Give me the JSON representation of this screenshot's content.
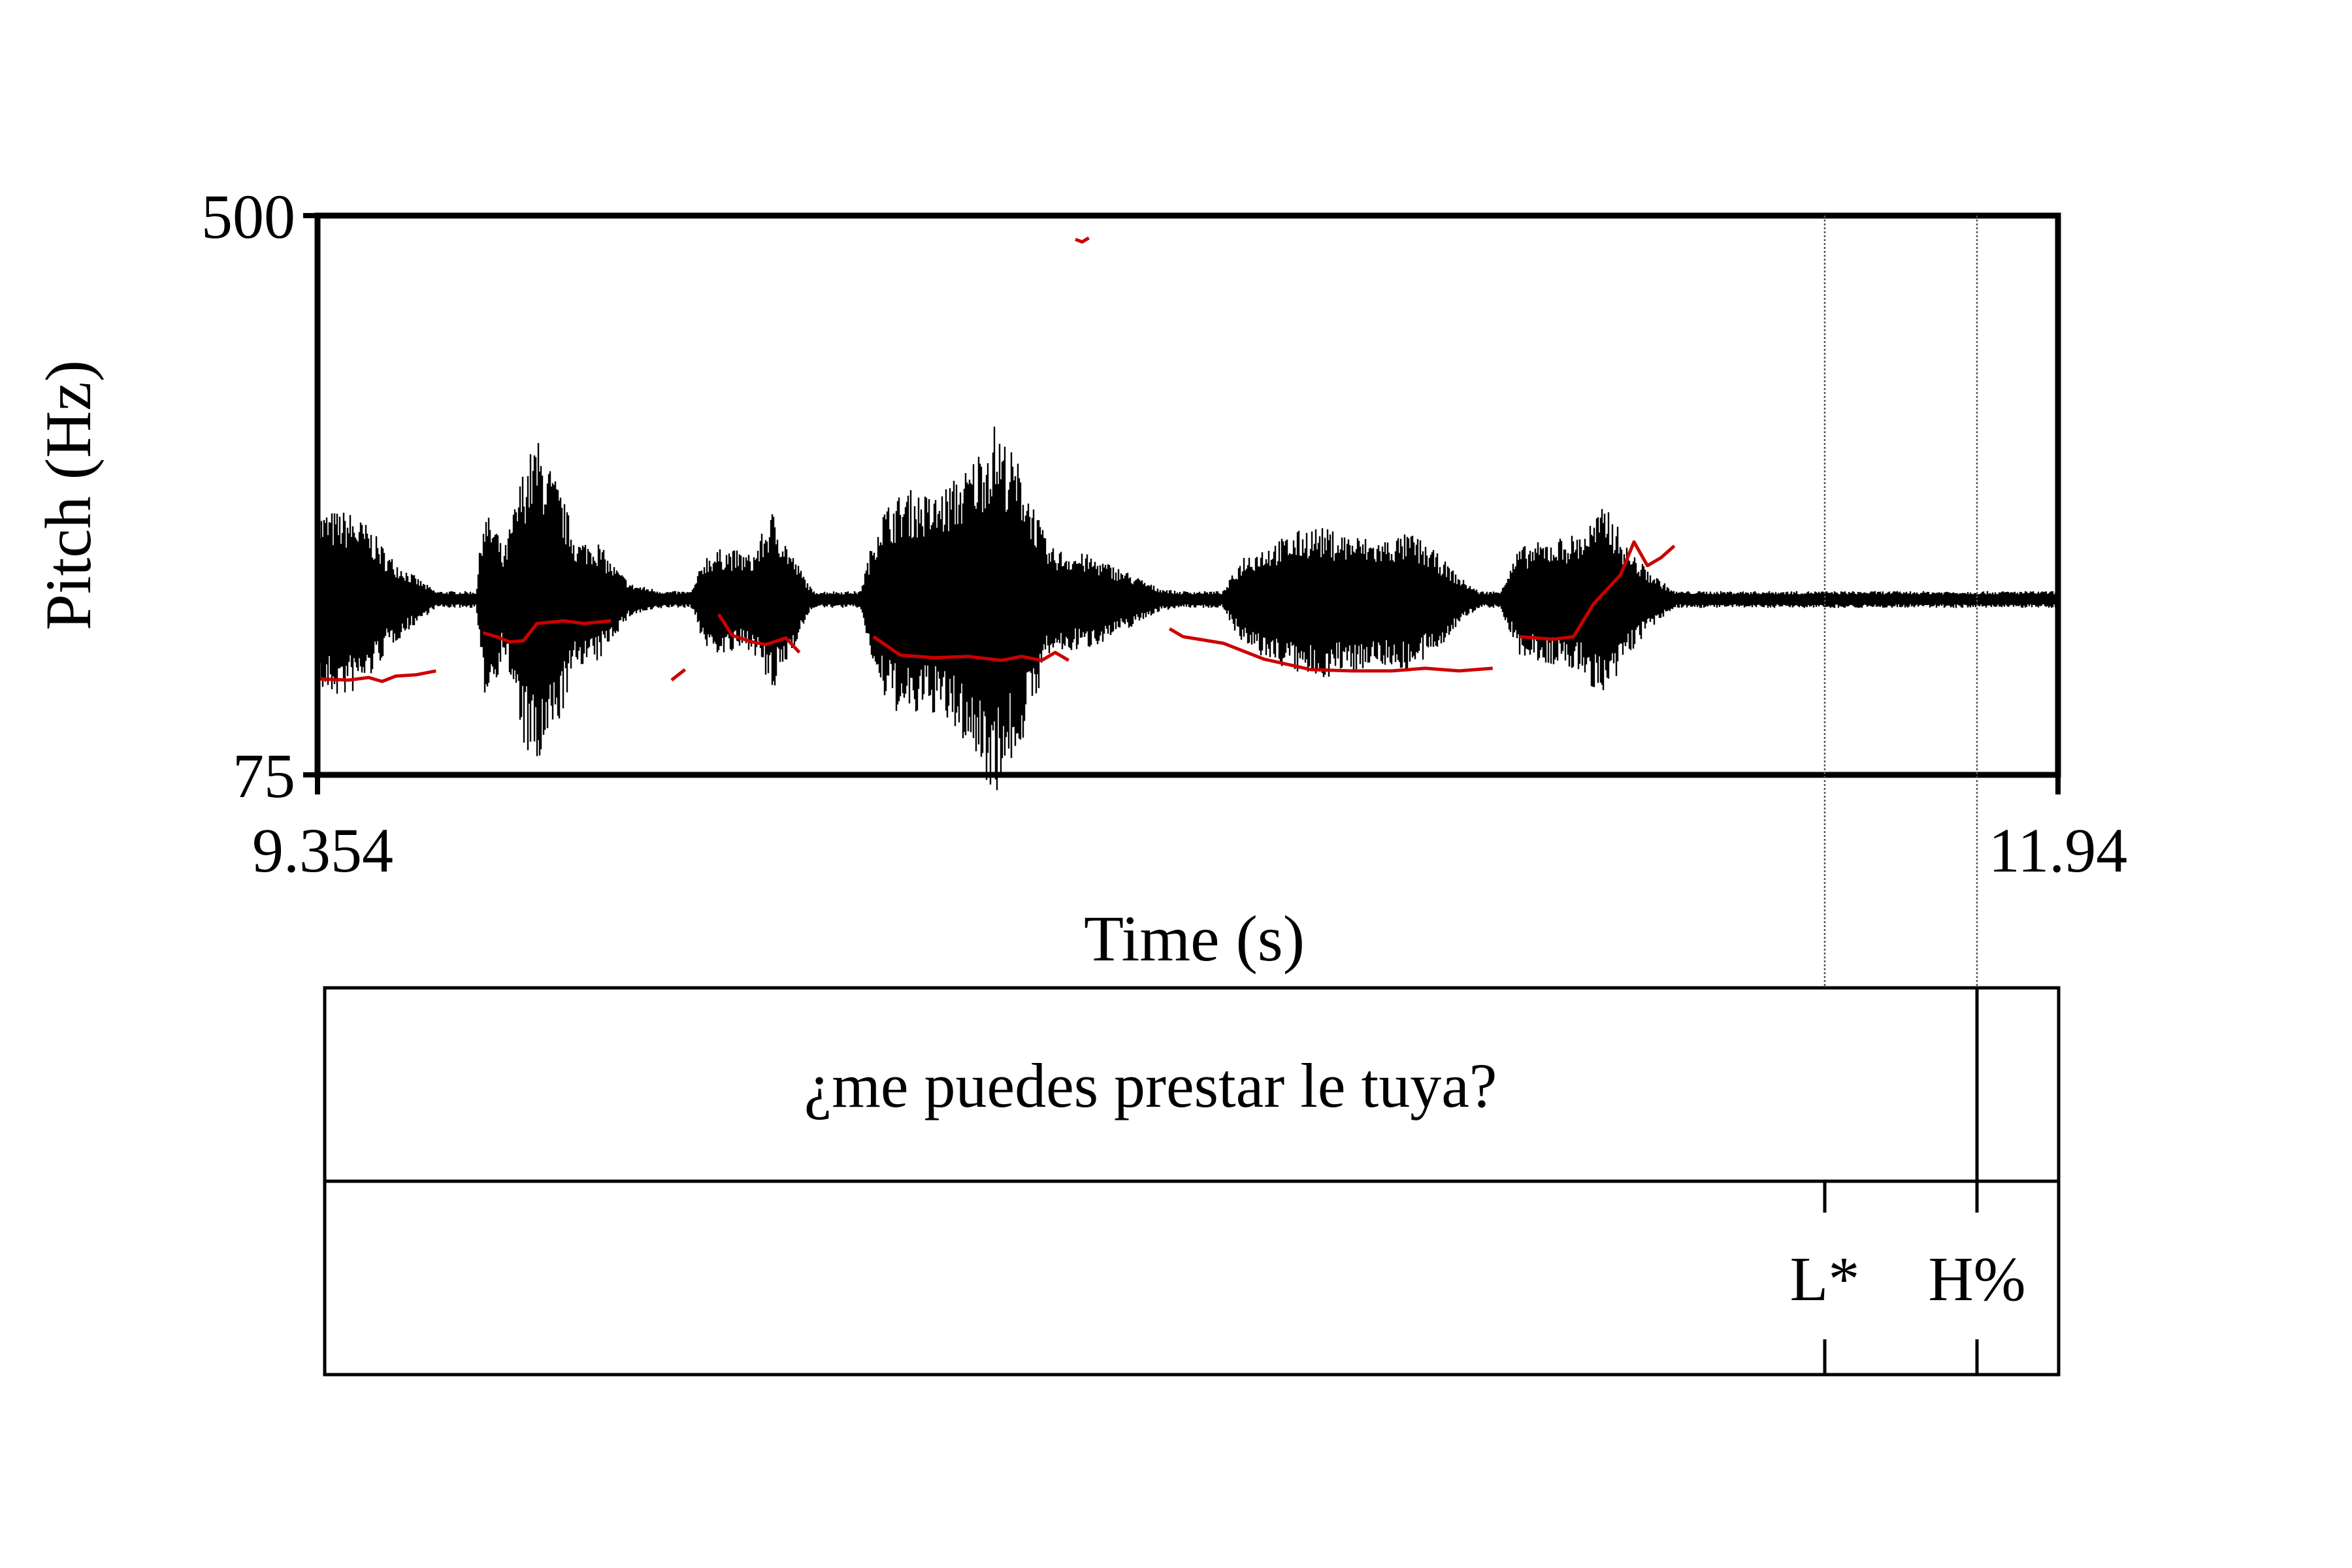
{
  "chart_data": {
    "type": "line",
    "ylabel": "Pitch (Hz)",
    "xlabel": "Time (s)",
    "yticks": [
      "75",
      "500"
    ],
    "xticks": [
      "9.354",
      "11.94"
    ],
    "xlim": [
      9.354,
      11.94
    ],
    "ylim": [
      75,
      500
    ],
    "y_scale": "linear",
    "grid": false,
    "colors": {
      "pitch": "#cc0000",
      "waveform": "#000000"
    },
    "waveform_envelope": [
      [
        9.354,
        0.06
      ],
      [
        9.4,
        0.06
      ],
      [
        9.43,
        0.05
      ],
      [
        9.46,
        0.03
      ],
      [
        9.5,
        0.015
      ],
      [
        9.53,
        0.005
      ],
      [
        9.59,
        0.005
      ],
      [
        9.6,
        0.06
      ],
      [
        9.62,
        0.05
      ],
      [
        9.63,
        0.03
      ],
      [
        9.66,
        0.09
      ],
      [
        9.68,
        0.11
      ],
      [
        9.71,
        0.08
      ],
      [
        9.74,
        0.04
      ],
      [
        9.77,
        0.04
      ],
      [
        9.79,
        0.025
      ],
      [
        9.82,
        0.01
      ],
      [
        9.87,
        0.005
      ],
      [
        9.89,
        0.005
      ],
      [
        9.91,
        0.005
      ],
      [
        9.93,
        0.03
      ],
      [
        9.96,
        0.035
      ],
      [
        10.0,
        0.03
      ],
      [
        10.03,
        0.06
      ],
      [
        10.06,
        0.03
      ],
      [
        10.09,
        0.005
      ],
      [
        10.16,
        0.005
      ],
      [
        10.19,
        0.06
      ],
      [
        10.23,
        0.075
      ],
      [
        10.27,
        0.07
      ],
      [
        10.32,
        0.09
      ],
      [
        10.36,
        0.12
      ],
      [
        10.4,
        0.09
      ],
      [
        10.44,
        0.035
      ],
      [
        10.5,
        0.03
      ],
      [
        10.55,
        0.02
      ],
      [
        10.6,
        0.008
      ],
      [
        10.63,
        0.005
      ],
      [
        10.7,
        0.005
      ],
      [
        10.73,
        0.03
      ],
      [
        10.78,
        0.04
      ],
      [
        10.83,
        0.05
      ],
      [
        10.88,
        0.045
      ],
      [
        10.93,
        0.04
      ],
      [
        10.98,
        0.045
      ],
      [
        11.02,
        0.03
      ],
      [
        11.05,
        0.015
      ],
      [
        11.08,
        0.005
      ],
      [
        11.11,
        0.005
      ],
      [
        11.14,
        0.035
      ],
      [
        11.18,
        0.04
      ],
      [
        11.23,
        0.045
      ],
      [
        11.27,
        0.065
      ],
      [
        11.3,
        0.035
      ],
      [
        11.33,
        0.02
      ],
      [
        11.37,
        0.005
      ],
      [
        11.94,
        0.005
      ]
    ],
    "series": [
      {
        "points": [
          [
            9.355,
            148
          ],
          [
            9.4,
            147
          ],
          [
            9.43,
            149
          ],
          [
            9.45,
            146
          ],
          [
            9.47,
            150
          ],
          [
            9.5,
            151
          ],
          [
            9.53,
            154
          ]
        ]
      },
      {
        "points": [
          [
            9.6,
            183
          ],
          [
            9.62,
            180
          ],
          [
            9.64,
            176
          ],
          [
            9.66,
            177
          ],
          [
            9.68,
            190
          ],
          [
            9.72,
            192
          ],
          [
            9.75,
            190
          ],
          [
            9.79,
            192
          ]
        ]
      },
      {
        "points": [
          [
            9.88,
            147
          ],
          [
            9.89,
            151
          ],
          [
            9.9,
            155
          ]
        ]
      },
      {
        "points": [
          [
            9.95,
            197
          ],
          [
            9.97,
            181
          ],
          [
            10.0,
            176
          ],
          [
            10.02,
            174
          ],
          [
            10.05,
            179
          ],
          [
            10.07,
            168
          ]
        ]
      },
      {
        "points": [
          [
            10.18,
            180
          ],
          [
            10.22,
            166
          ],
          [
            10.27,
            164
          ],
          [
            10.32,
            165
          ],
          [
            10.37,
            162
          ],
          [
            10.4,
            165
          ],
          [
            10.43,
            162
          ],
          [
            10.45,
            168
          ],
          [
            10.47,
            162
          ]
        ]
      },
      {
        "points": [
          [
            10.48,
            482
          ],
          [
            10.49,
            480
          ],
          [
            10.5,
            483
          ]
        ]
      },
      {
        "points": [
          [
            10.62,
            186
          ],
          [
            10.64,
            180
          ],
          [
            10.7,
            175
          ],
          [
            10.76,
            163
          ],
          [
            10.83,
            155
          ],
          [
            10.89,
            154
          ],
          [
            10.95,
            154
          ],
          [
            11.0,
            156
          ],
          [
            11.05,
            154
          ],
          [
            11.1,
            156
          ]
        ]
      },
      {
        "points": [
          [
            11.14,
            180
          ],
          [
            11.19,
            178
          ],
          [
            11.22,
            180
          ],
          [
            11.25,
            205
          ],
          [
            11.29,
            227
          ],
          [
            11.31,
            252
          ],
          [
            11.33,
            234
          ],
          [
            11.35,
            240
          ],
          [
            11.37,
            249
          ]
        ]
      }
    ],
    "tiers": [
      {
        "intervals": [
          {
            "text": "¿me puedes prestar le tuya?"
          },
          {
            "text": ""
          }
        ]
      },
      {
        "points": [
          {
            "time": 11.577,
            "text": "L*"
          },
          {
            "time": 11.804,
            "text": "H%"
          }
        ]
      }
    ],
    "tier1_boundaries": [
      11.804
    ]
  }
}
